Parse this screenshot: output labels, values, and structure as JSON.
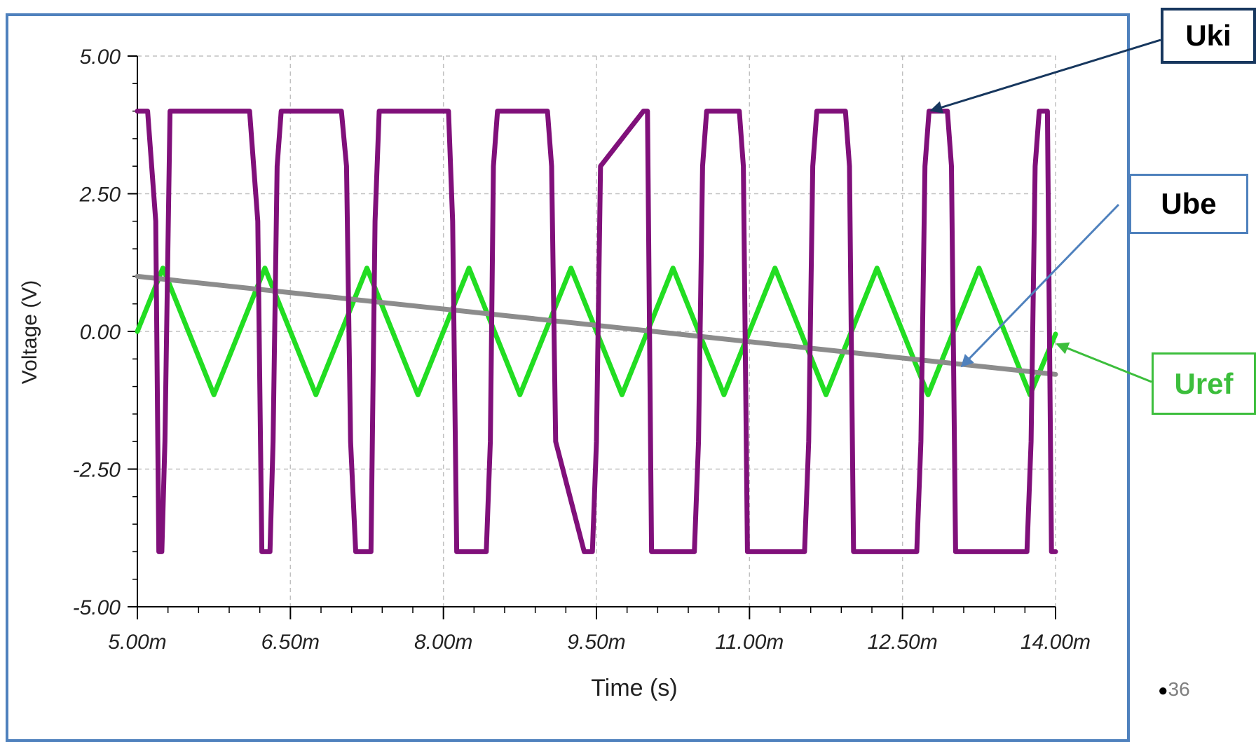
{
  "chart_data": {
    "type": "line",
    "xlabel": "Time (s)",
    "ylabel": "Voltage (V)",
    "xlim": [
      5.0,
      14.0
    ],
    "ylim": [
      -5.0,
      5.0
    ],
    "x_ticks": [
      5.0,
      6.5,
      8.0,
      9.5,
      11.0,
      12.5,
      14.0
    ],
    "x_tick_labels": [
      "5.00m",
      "6.50m",
      "8.00m",
      "9.50m",
      "11.00m",
      "12.50m",
      "14.00m"
    ],
    "y_ticks": [
      5.0,
      2.5,
      0.0,
      -2.5,
      -5.0
    ],
    "y_tick_labels": [
      "5.00",
      "2.50",
      "0.00",
      "-2.50",
      "-5.00"
    ],
    "grid": true,
    "x_unit_note": "time values in milliseconds",
    "series": [
      {
        "name": "Uref",
        "color": "#22dd22",
        "x": [
          5.0,
          5.25,
          5.75,
          6.25,
          6.75,
          7.25,
          7.75,
          8.25,
          8.75,
          9.25,
          9.75,
          10.25,
          10.75,
          11.25,
          11.75,
          12.25,
          12.75,
          13.25,
          13.75,
          14.0
        ],
        "y": [
          0.0,
          1.15,
          -1.15,
          1.15,
          -1.15,
          1.15,
          -1.15,
          1.15,
          -1.15,
          1.15,
          -1.15,
          1.15,
          -1.15,
          1.15,
          -1.15,
          1.15,
          -1.15,
          1.15,
          -1.15,
          -0.05
        ]
      },
      {
        "name": "Ube",
        "color": "#8c8c8c",
        "x": [
          5.0,
          14.0
        ],
        "y": [
          1.0,
          -0.78
        ]
      },
      {
        "name": "Uki",
        "color": "#80107a",
        "x": [
          5.0,
          5.1,
          5.18,
          5.21,
          5.24,
          5.27,
          5.32,
          5.35,
          5.38,
          6.1,
          6.18,
          6.22,
          6.3,
          6.33,
          6.37,
          6.41,
          6.44,
          7.0,
          7.05,
          7.09,
          7.14,
          7.25,
          7.29,
          7.33,
          7.37,
          7.41,
          8.05,
          8.09,
          8.13,
          8.38,
          8.42,
          8.46,
          8.49,
          8.53,
          9.02,
          9.06,
          9.1,
          9.38,
          9.42,
          9.46,
          9.5,
          9.54,
          9.96,
          10.0,
          10.04,
          10.42,
          10.46,
          10.5,
          10.54,
          10.58,
          10.9,
          10.94,
          10.98,
          11.5,
          11.54,
          11.58,
          11.62,
          11.66,
          11.94,
          11.98,
          12.02,
          12.6,
          12.64,
          12.68,
          12.72,
          12.76,
          12.94,
          12.98,
          13.02,
          13.68,
          13.72,
          13.76,
          13.8,
          13.84,
          13.92,
          13.96,
          14.0
        ],
        "y": [
          4.0,
          4.0,
          2.0,
          -4.0,
          -4.0,
          -2.0,
          4.0,
          4.0,
          4.0,
          4.0,
          2.0,
          -4.0,
          -4.0,
          -2.0,
          3.0,
          4.0,
          4.0,
          4.0,
          3.0,
          -2.0,
          -4.0,
          -4.0,
          -4.0,
          2.0,
          4.0,
          4.0,
          4.0,
          2.0,
          -4.0,
          -4.0,
          -4.0,
          -2.0,
          3.0,
          4.0,
          4.0,
          3.0,
          -2.0,
          -4.0,
          -4.0,
          -4.0,
          -2.0,
          3.0,
          4.0,
          4.0,
          -4.0,
          -4.0,
          -4.0,
          -2.0,
          3.0,
          4.0,
          4.0,
          3.0,
          -4.0,
          -4.0,
          -4.0,
          -2.0,
          3.0,
          4.0,
          4.0,
          3.0,
          -4.0,
          -4.0,
          -4.0,
          -2.0,
          3.0,
          4.0,
          4.0,
          3.0,
          -4.0,
          -4.0,
          -4.0,
          -2.0,
          3.0,
          4.0,
          4.0,
          -4.0,
          -4.0
        ]
      }
    ]
  },
  "callouts": {
    "uki": "Uki",
    "ube": "Ube",
    "uref": "Uref"
  },
  "slide_number": "36",
  "colors": {
    "frame": "#4f81bd",
    "uki_box": "#17375e",
    "ube_box": "#4f81bd",
    "uref_box": "#3cbe3c"
  }
}
